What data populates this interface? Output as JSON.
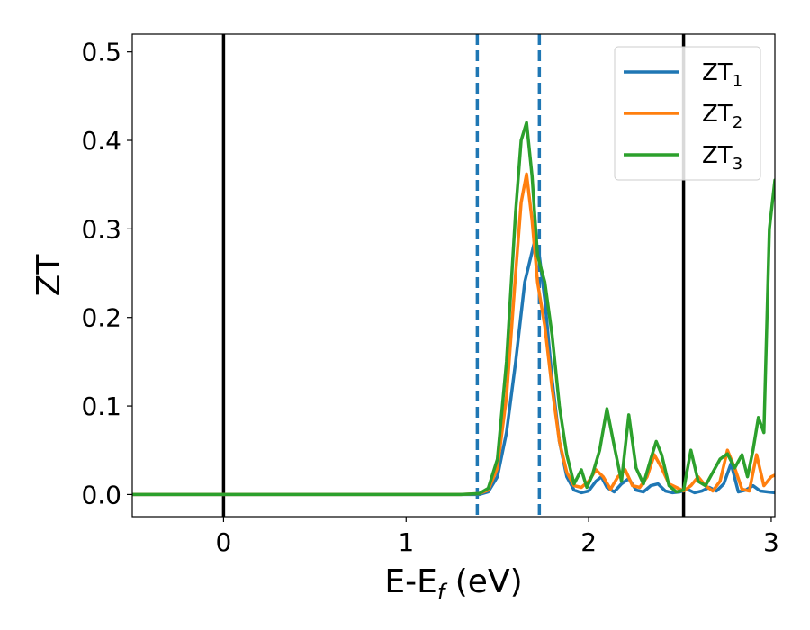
{
  "chart_data": {
    "type": "line",
    "xlabel_main": "E-E",
    "xlabel_sub": "f",
    "xlabel_unit": " (eV)",
    "ylabel": "ZT",
    "xlim": [
      -0.5,
      3.02
    ],
    "ylim": [
      -0.025,
      0.52
    ],
    "xticks": [
      {
        "value": 0,
        "label": "0"
      },
      {
        "value": 1,
        "label": "1"
      },
      {
        "value": 2,
        "label": "2"
      },
      {
        "value": 3,
        "label": "3"
      }
    ],
    "yticks": [
      {
        "value": 0.0,
        "label": "0.0"
      },
      {
        "value": 0.1,
        "label": "0.1"
      },
      {
        "value": 0.2,
        "label": "0.2"
      },
      {
        "value": 0.3,
        "label": "0.3"
      },
      {
        "value": 0.4,
        "label": "0.4"
      },
      {
        "value": 0.5,
        "label": "0.5"
      }
    ],
    "vlines": [
      {
        "x": 0.0,
        "style": "solid",
        "color": "#000000"
      },
      {
        "x": 2.52,
        "style": "solid",
        "color": "#000000"
      },
      {
        "x": 1.39,
        "style": "dashed",
        "color": "#1f77b4"
      },
      {
        "x": 1.73,
        "style": "dashed",
        "color": "#1f77b4"
      }
    ],
    "grid": false,
    "legend_position": "top-right",
    "series": [
      {
        "name": "ZT",
        "name_sub": "1",
        "color": "#1f77b4",
        "x": [
          -0.5,
          1.3,
          1.4,
          1.45,
          1.5,
          1.55,
          1.6,
          1.65,
          1.7,
          1.73,
          1.76,
          1.8,
          1.84,
          1.88,
          1.92,
          1.96,
          2.0,
          2.04,
          2.07,
          2.1,
          2.14,
          2.18,
          2.22,
          2.26,
          2.3,
          2.34,
          2.38,
          2.42,
          2.46,
          2.5,
          2.54,
          2.58,
          2.62,
          2.66,
          2.7,
          2.74,
          2.78,
          2.82,
          2.86,
          2.9,
          2.94,
          2.98,
          3.02
        ],
        "y": [
          0.0,
          0.0,
          0.0,
          0.003,
          0.02,
          0.07,
          0.15,
          0.24,
          0.283,
          0.27,
          0.22,
          0.13,
          0.06,
          0.02,
          0.005,
          0.002,
          0.004,
          0.015,
          0.02,
          0.008,
          0.003,
          0.012,
          0.018,
          0.005,
          0.003,
          0.01,
          0.012,
          0.004,
          0.002,
          0.003,
          0.006,
          0.002,
          0.004,
          0.008,
          0.004,
          0.012,
          0.035,
          0.003,
          0.005,
          0.01,
          0.004,
          0.003,
          0.002
        ]
      },
      {
        "name": "ZT",
        "name_sub": "2",
        "color": "#ff7f0e",
        "x": [
          -0.5,
          1.3,
          1.4,
          1.45,
          1.5,
          1.55,
          1.6,
          1.63,
          1.66,
          1.69,
          1.72,
          1.76,
          1.8,
          1.84,
          1.88,
          1.92,
          1.96,
          2.0,
          2.04,
          2.08,
          2.12,
          2.16,
          2.2,
          2.24,
          2.28,
          2.32,
          2.36,
          2.4,
          2.44,
          2.48,
          2.52,
          2.56,
          2.6,
          2.64,
          2.68,
          2.72,
          2.76,
          2.8,
          2.84,
          2.88,
          2.92,
          2.96,
          3.0,
          3.02
        ],
        "y": [
          0.0,
          0.0,
          0.001,
          0.005,
          0.03,
          0.11,
          0.25,
          0.33,
          0.362,
          0.31,
          0.24,
          0.19,
          0.12,
          0.06,
          0.025,
          0.01,
          0.008,
          0.015,
          0.028,
          0.02,
          0.006,
          0.02,
          0.028,
          0.01,
          0.008,
          0.02,
          0.045,
          0.03,
          0.012,
          0.008,
          0.004,
          0.01,
          0.02,
          0.01,
          0.004,
          0.015,
          0.05,
          0.03,
          0.006,
          0.004,
          0.045,
          0.01,
          0.02,
          0.022
        ]
      },
      {
        "name": "ZT",
        "name_sub": "3",
        "color": "#2ca02c",
        "x": [
          -0.5,
          1.3,
          1.4,
          1.45,
          1.5,
          1.55,
          1.6,
          1.63,
          1.66,
          1.69,
          1.72,
          1.76,
          1.8,
          1.84,
          1.88,
          1.92,
          1.96,
          1.99,
          2.02,
          2.06,
          2.1,
          2.14,
          2.18,
          2.22,
          2.26,
          2.3,
          2.34,
          2.37,
          2.4,
          2.44,
          2.48,
          2.52,
          2.56,
          2.6,
          2.64,
          2.68,
          2.72,
          2.76,
          2.8,
          2.84,
          2.87,
          2.9,
          2.93,
          2.96,
          2.99,
          3.02
        ],
        "y": [
          0.0,
          0.0,
          0.001,
          0.007,
          0.04,
          0.15,
          0.32,
          0.4,
          0.42,
          0.36,
          0.27,
          0.24,
          0.18,
          0.1,
          0.045,
          0.012,
          0.028,
          0.008,
          0.022,
          0.05,
          0.097,
          0.055,
          0.015,
          0.09,
          0.03,
          0.012,
          0.04,
          0.06,
          0.045,
          0.01,
          0.003,
          0.005,
          0.05,
          0.015,
          0.01,
          0.025,
          0.04,
          0.046,
          0.03,
          0.045,
          0.02,
          0.05,
          0.087,
          0.07,
          0.3,
          0.355
        ]
      }
    ]
  }
}
